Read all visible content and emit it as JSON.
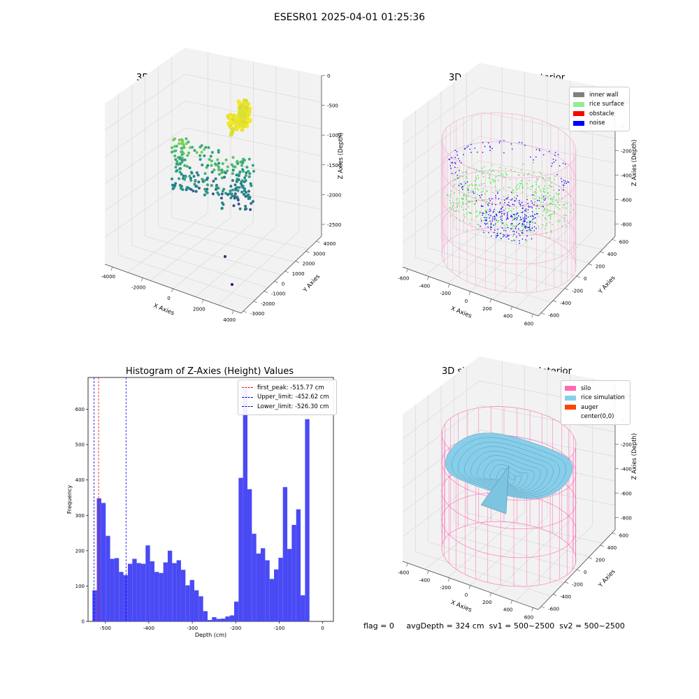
{
  "suptitle": "ESESR01 2025-04-01 01:25:36",
  "colors": {
    "pane_face": "#f2f2f2",
    "pane_grid": "#d9d9d9",
    "hist_bar": "#4a4af5",
    "inner_wall": "#808080",
    "rice_surface": "#90ee90",
    "obstacle": "#ff0000",
    "noise": "#0000ff",
    "silo": "#ff69b4",
    "rice_simulation": "#87ceeb",
    "auger": "#ff4500"
  },
  "chart_data": [
    {
      "type": "scatter",
      "subtype": "3d",
      "title": "3D Plot of Silo Interior(row data)",
      "xlabel": "X Axies",
      "ylabel": "Y Axies",
      "zlabel": "Z Axies (Depth)",
      "x_ticks": [
        "-4000",
        "-2000",
        "0",
        "2000",
        "4000"
      ],
      "y_ticks": [
        "-3000",
        "-2000",
        "-1000",
        "0",
        "1000",
        "2000",
        "3000",
        "4000"
      ],
      "z_ticks": [
        "0",
        "-500",
        "-1000",
        "-1500",
        "-2000",
        "-2500"
      ],
      "xlim": [
        -4500,
        4500
      ],
      "ylim": [
        -3200,
        4500
      ],
      "zlim": [
        -2700,
        0
      ],
      "colormap": "viridis by depth"
    },
    {
      "type": "scatter",
      "subtype": "3d",
      "title": "3D classify of Silo Interior",
      "xlabel": "X Axies",
      "ylabel": "Y Axies",
      "zlabel": "Z Axies (Depth)",
      "x_ticks": [
        "-600",
        "-400",
        "-200",
        "0",
        "200",
        "400",
        "600"
      ],
      "y_ticks": [
        "-600",
        "-400",
        "-200",
        "0",
        "200",
        "400",
        "600"
      ],
      "z_ticks": [
        "200",
        "0",
        "-200",
        "-400",
        "-600",
        "-800"
      ],
      "xlim": [
        -650,
        650
      ],
      "ylim": [
        -650,
        650
      ],
      "zlim": [
        -900,
        300
      ],
      "legend": [
        "inner wall",
        "rice surface",
        "obstacle",
        "noise"
      ],
      "legend_position": "upper-right"
    },
    {
      "type": "bar",
      "subtype": "histogram",
      "title": "Histogram of Z-Axies (Height) Values",
      "xlabel": "Depth (cm)",
      "ylabel": "Frequency",
      "xlim": [
        -540,
        25
      ],
      "ylim": [
        0,
        690
      ],
      "x_ticks": [
        "-500",
        "-400",
        "-300",
        "-200",
        "-100",
        "0"
      ],
      "y_ticks": [
        "0",
        "100",
        "200",
        "300",
        "400",
        "500",
        "600"
      ],
      "bin_start": -530,
      "bin_width": 10.2,
      "values": [
        88,
        348,
        335,
        242,
        177,
        179,
        140,
        131,
        163,
        177,
        165,
        163,
        215,
        170,
        140,
        137,
        167,
        200,
        165,
        173,
        146,
        102,
        117,
        88,
        71,
        29,
        4,
        12,
        7,
        8,
        14,
        17,
        56,
        406,
        658,
        374,
        248,
        192,
        207,
        173,
        120,
        147,
        180,
        380,
        205,
        273,
        317,
        74,
        572
      ],
      "vlines": [
        {
          "label": "first_peak: -515.77 cm",
          "x": -515.77,
          "color": "#ff0000"
        },
        {
          "label": "Upper_limit: -452.62 cm",
          "x": -452.62,
          "color": "#0000ff"
        },
        {
          "label": "Lower_limit: -526.30 cm",
          "x": -526.3,
          "color": "#0000cc"
        }
      ],
      "legend_position": "upper-right"
    },
    {
      "type": "surface",
      "subtype": "3d",
      "title": "3D simulation of Silo Interior",
      "xlabel": "X Axies",
      "ylabel": "Y Axies",
      "zlabel": "Z Axies (Depth)",
      "x_ticks": [
        "-600",
        "-400",
        "-200",
        "0",
        "200",
        "400",
        "600"
      ],
      "y_ticks": [
        "-600",
        "-400",
        "-200",
        "0",
        "200",
        "400",
        "600"
      ],
      "z_ticks": [
        "200",
        "0",
        "-200",
        "-400",
        "-600",
        "-800"
      ],
      "xlim": [
        -650,
        650
      ],
      "ylim": [
        -650,
        650
      ],
      "zlim": [
        -900,
        300
      ],
      "legend": [
        "silo",
        "rice simulation",
        "auger",
        "center(0,0)"
      ],
      "legend_position": "upper-right"
    }
  ],
  "status": {
    "flag": "flag = 0",
    "avg_depth": "avgDepth = 324 cm",
    "sv1": "sv1 = 500~2500",
    "sv2": "sv2 = 500~2500"
  }
}
